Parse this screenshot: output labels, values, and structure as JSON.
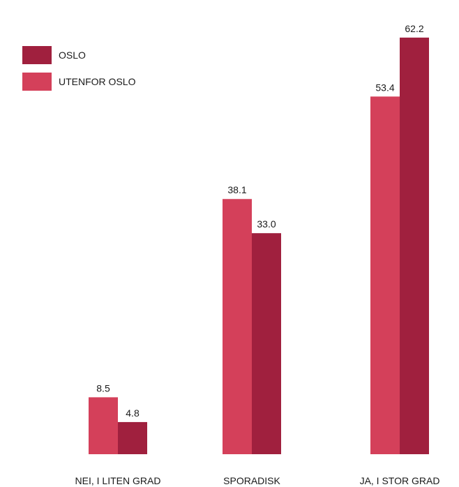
{
  "chart_data": {
    "type": "bar",
    "categories": [
      "NEI, I LITEN GRAD",
      "SPORADISK",
      "JA, I STOR GRAD"
    ],
    "series": [
      {
        "name": "UTENFOR OSLO",
        "values": [
          8.5,
          38.1,
          53.4
        ],
        "color": "#d4405a"
      },
      {
        "name": "OSLO",
        "values": [
          4.8,
          33.0,
          62.2
        ],
        "color": "#a0203e"
      }
    ],
    "value_labels": [
      [
        "8.5",
        "38.1",
        "53.4"
      ],
      [
        "4.8",
        "33.0",
        "62.2"
      ]
    ],
    "ylim": [
      0,
      70
    ],
    "grid": false,
    "legend_position": "top-left",
    "title": "",
    "xlabel": "",
    "ylabel": ""
  },
  "legend": {
    "items": [
      {
        "label": "OSLO",
        "color": "#a0203e"
      },
      {
        "label": "UTENFOR OSLO",
        "color": "#d4405a"
      }
    ]
  }
}
